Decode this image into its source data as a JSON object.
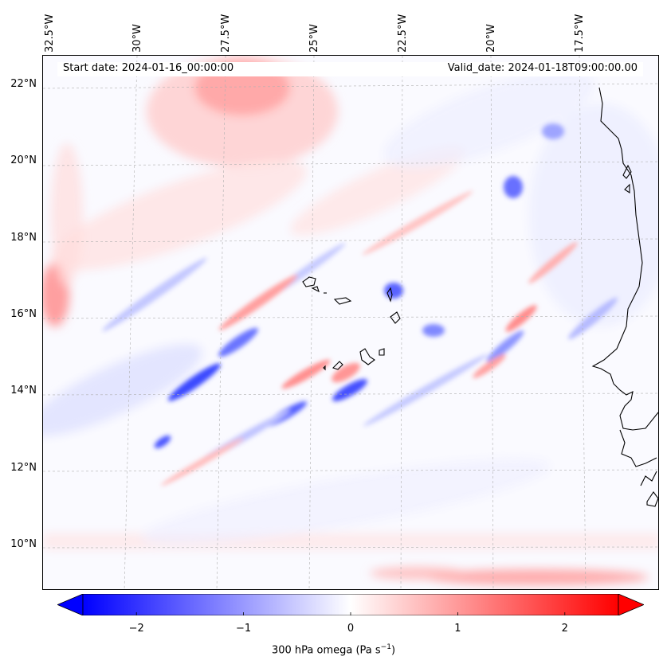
{
  "map": {
    "start_date": "Start date: 2024-01-16_00:00:00",
    "valid_date": "Valid_date: 2024-01-18T09:00:00.00",
    "lon_labels": [
      "32.5°W",
      "30°W",
      "27.5°W",
      "25°W",
      "22.5°W",
      "20°W",
      "17.5°W"
    ],
    "lat_labels": [
      "22°N",
      "20°N",
      "18°N",
      "16°N",
      "14°N",
      "12°N",
      "10°N"
    ],
    "variable": "300 hPa omega",
    "units_prefix": "300 hPa omega (Pa s",
    "units_sup": "−1",
    "units_suffix": ")"
  },
  "colorbar": {
    "ticks": [
      "−2",
      "−1",
      "0",
      "1",
      "2"
    ],
    "tick_values": [
      -2,
      -1,
      0,
      1,
      2
    ],
    "min": -2.5,
    "max": 2.5,
    "low_color": "#0000ff",
    "mid_color": "#ffffff",
    "high_color": "#ff0000"
  },
  "colors": {
    "land_outline": "#000000",
    "grid": "#b0b0b0"
  }
}
